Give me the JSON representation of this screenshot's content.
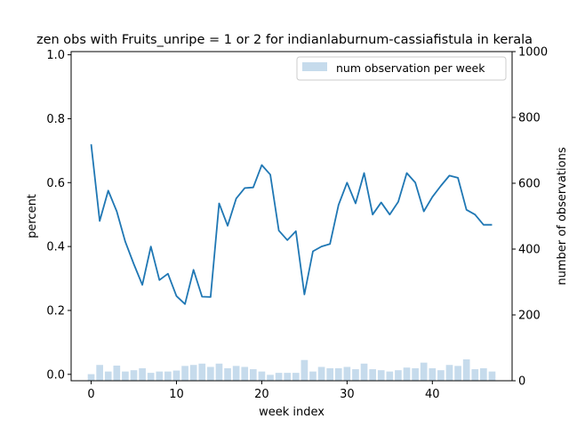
{
  "chart_data": {
    "type": "line",
    "title": "zen obs with Fruits_unripe = 1 or 2 for indianlaburnum-cassiafistula in kerala",
    "xlabel": "week index",
    "ylabel_left": "percent",
    "ylabel_right": "number of observations",
    "xlim": [
      -2.35,
      49.35
    ],
    "ylim_left": [
      -0.02,
      1.01
    ],
    "ylim_right": [
      0,
      1000
    ],
    "x_ticks": [
      0,
      10,
      20,
      30,
      40
    ],
    "y_ticks_left": [
      "0.0",
      "0.2",
      "0.4",
      "0.6",
      "0.8",
      "1.0"
    ],
    "y_ticks_right": [
      "0",
      "200",
      "400",
      "600",
      "800",
      "1000"
    ],
    "legend": {
      "placement": "top-right",
      "label": "num observation per week"
    },
    "colors": {
      "line": "#1f77b4",
      "bars": "#c6dbec"
    },
    "x": [
      0,
      1,
      2,
      3,
      4,
      5,
      6,
      7,
      8,
      9,
      10,
      11,
      12,
      13,
      14,
      15,
      16,
      17,
      18,
      19,
      20,
      21,
      22,
      23,
      24,
      25,
      26,
      27,
      28,
      29,
      30,
      31,
      32,
      33,
      34,
      35,
      36,
      37,
      38,
      39,
      40,
      41,
      42,
      43,
      44,
      45,
      46,
      47
    ],
    "series": [
      {
        "axis": "left",
        "kind": "line",
        "values": [
          0.72,
          0.48,
          0.575,
          0.51,
          0.415,
          0.345,
          0.28,
          0.4,
          0.295,
          0.315,
          0.245,
          0.22,
          0.327,
          0.243,
          0.242,
          0.535,
          0.465,
          0.55,
          0.583,
          0.585,
          0.655,
          0.625,
          0.45,
          0.42,
          0.448,
          0.25,
          0.385,
          0.4,
          0.408,
          0.53,
          0.6,
          0.535,
          0.63,
          0.5,
          0.538,
          0.5,
          0.54,
          0.63,
          0.6,
          0.51,
          0.555,
          0.59,
          0.622,
          0.615,
          0.515,
          0.5,
          0.468,
          0.468
        ]
      },
      {
        "axis": "right",
        "kind": "bar",
        "name": "num observation per week",
        "values": [
          20,
          48,
          28,
          46,
          28,
          32,
          38,
          24,
          28,
          28,
          31,
          45,
          48,
          52,
          42,
          52,
          38,
          45,
          42,
          35,
          28,
          18,
          24,
          24,
          24,
          63,
          28,
          42,
          38,
          38,
          42,
          35,
          52,
          35,
          32,
          28,
          32,
          40,
          38,
          55,
          38,
          32,
          48,
          45,
          65,
          35,
          38,
          28
        ]
      }
    ]
  }
}
